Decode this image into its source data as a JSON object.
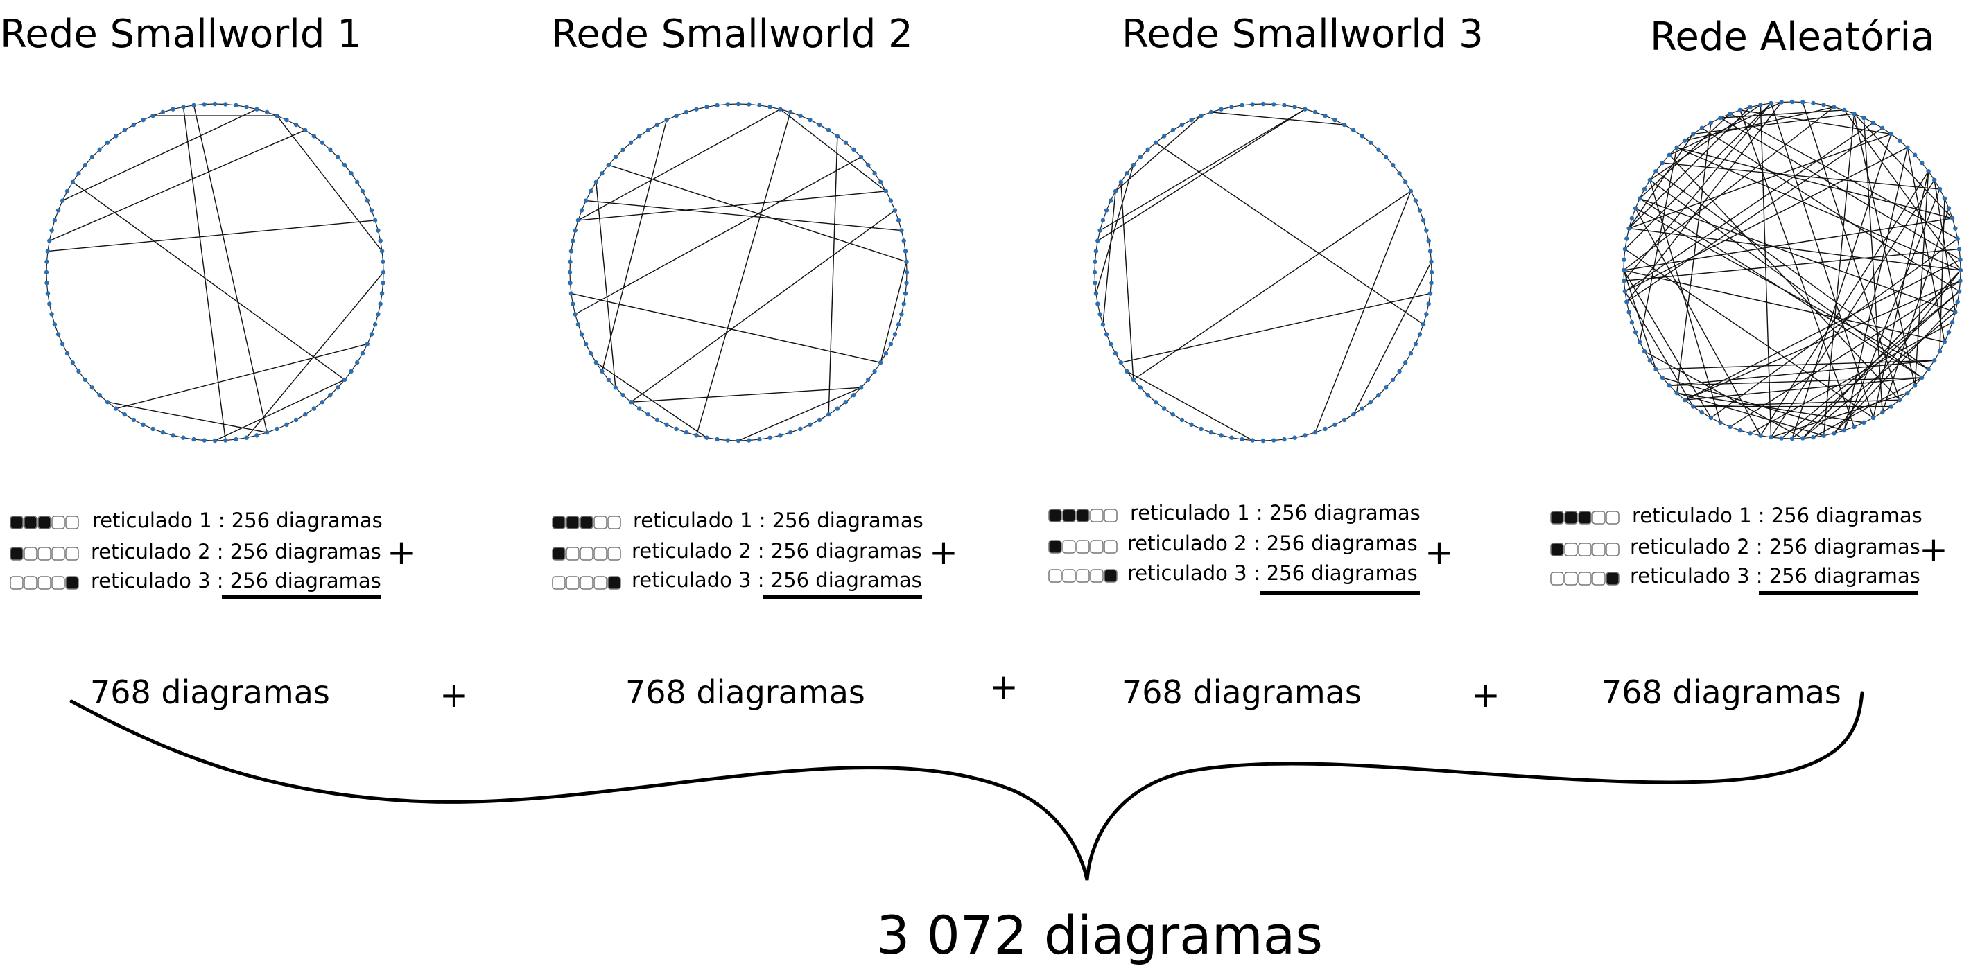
{
  "networks": [
    {
      "title": "Rede Smallworld 1",
      "rows": [
        {
          "label": "reticulado 1 : 256 diagramas",
          "pattern": [
            1,
            1,
            1,
            0,
            0
          ]
        },
        {
          "label": "reticulado 2 : 256 diagramas",
          "pattern": [
            1,
            0,
            0,
            0,
            0
          ]
        },
        {
          "label": "reticulado 3 : 256 diagramas",
          "pattern": [
            0,
            0,
            0,
            0,
            1
          ]
        }
      ],
      "plus": "+",
      "subtotal": "768 diagramas",
      "node_color": "#2a6fb4"
    },
    {
      "title": "Rede Smallworld 2",
      "rows": [
        {
          "label": "reticulado 1 : 256 diagramas",
          "pattern": [
            1,
            1,
            1,
            0,
            0
          ]
        },
        {
          "label": "reticulado 2 : 256 diagramas",
          "pattern": [
            1,
            0,
            0,
            0,
            0
          ]
        },
        {
          "label": "reticulado 3 : 256 diagramas",
          "pattern": [
            0,
            0,
            0,
            0,
            1
          ]
        }
      ],
      "plus": "+",
      "subtotal": "768 diagramas",
      "node_color": "#2a6fb4"
    },
    {
      "title": "Rede Smallworld 3",
      "rows": [
        {
          "label": "reticulado 1 : 256 diagramas",
          "pattern": [
            1,
            1,
            1,
            0,
            0
          ]
        },
        {
          "label": "reticulado 2 : 256 diagramas",
          "pattern": [
            1,
            0,
            0,
            0,
            0
          ]
        },
        {
          "label": "reticulado 3 : 256 diagramas",
          "pattern": [
            0,
            0,
            0,
            0,
            1
          ]
        }
      ],
      "plus": "+",
      "subtotal": "768 diagramas",
      "node_color": "#2a6fb4"
    },
    {
      "title": "Rede Aleatória",
      "rows": [
        {
          "label": "reticulado 1 : 256 diagramas",
          "pattern": [
            1,
            1,
            1,
            0,
            0
          ]
        },
        {
          "label": "reticulado 2 : 256 diagramas",
          "pattern": [
            1,
            0,
            0,
            0,
            0
          ]
        },
        {
          "label": "reticulado 3 : 256 diagramas",
          "pattern": [
            0,
            0,
            0,
            0,
            1
          ]
        }
      ],
      "plus": "+",
      "subtotal": "768 diagramas",
      "node_color": "#2a6fb4"
    }
  ],
  "between_plus": [
    "+",
    "+",
    "+"
  ],
  "total": "3 072 diagramas"
}
